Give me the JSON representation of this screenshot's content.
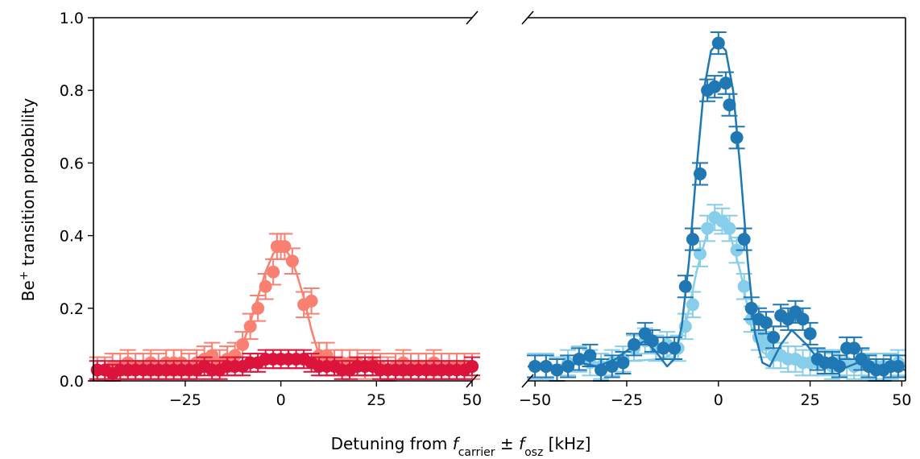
{
  "chart_data": {
    "type": "scatter",
    "ylabel_main": "Be",
    "ylabel_sup": "+",
    "ylabel_rest": " transition probability",
    "xlabel_pre": "Detuning from ",
    "xlabel_f1": "f",
    "xlabel_sub1": "carrier",
    "xlabel_pm": " ± ",
    "xlabel_f2": "f",
    "xlabel_sub2": "osz",
    "xlabel_post": " [kHz]",
    "ylim": [
      0,
      1.0
    ],
    "yticks": [
      "0.0",
      "0.2",
      "0.4",
      "0.6",
      "0.8",
      "1.0"
    ],
    "grid": false,
    "colors": {
      "salmon": "#fa8072",
      "crimson": "#dc143c",
      "blue": "#1f77b4",
      "lightblue": "#87ceeb"
    },
    "panels": [
      {
        "xlim": [
          -49,
          50
        ],
        "xticks": [
          "−25",
          "0",
          "25",
          "50"
        ],
        "xtick_values": [
          -25,
          0,
          25,
          50
        ],
        "series": [
          {
            "color": "#fa8072",
            "x": [
              -48,
              -46,
              -44,
              -42,
              -40,
              -38,
              -36,
              -34,
              -32,
              -30,
              -28,
              -26,
              -24,
              -22,
              -20,
              -18,
              -16,
              -14,
              -12,
              -10,
              -8,
              -6,
              -4,
              -2,
              -1,
              0,
              1,
              3,
              6,
              8,
              10,
              12,
              14,
              16,
              18,
              20,
              22,
              24,
              26,
              28,
              30,
              32,
              34,
              36,
              38,
              40,
              42,
              44,
              46,
              48,
              50
            ],
            "y": [
              0.03,
              0.03,
              0.04,
              0.04,
              0.05,
              0.04,
              0.04,
              0.05,
              0.04,
              0.05,
              0.05,
              0.05,
              0.04,
              0.05,
              0.06,
              0.07,
              0.05,
              0.06,
              0.07,
              0.1,
              0.15,
              0.2,
              0.26,
              0.3,
              0.37,
              0.37,
              0.37,
              0.33,
              0.21,
              0.22,
              0.07,
              0.07,
              0.05,
              0.05,
              0.05,
              0.05,
              0.04,
              0.05,
              0.04,
              0.03,
              0.04,
              0.05,
              0.04,
              0.04,
              0.04,
              0.05,
              0.04,
              0.04,
              0.04,
              0.04,
              0.04
            ],
            "err": 0.035,
            "fit_x": [
              -49,
              -15,
              -10,
              -8,
              -6,
              -4,
              -2,
              0,
              2,
              4,
              6,
              8,
              10,
              12,
              50
            ],
            "fit_y": [
              0.04,
              0.05,
              0.1,
              0.16,
              0.23,
              0.3,
              0.35,
              0.37,
              0.35,
              0.3,
              0.23,
              0.14,
              0.07,
              0.05,
              0.04
            ]
          },
          {
            "color": "#dc143c",
            "x": [
              -48,
              -46,
              -44,
              -42,
              -40,
              -38,
              -36,
              -34,
              -32,
              -30,
              -28,
              -26,
              -24,
              -22,
              -20,
              -18,
              -16,
              -14,
              -12,
              -10,
              -8,
              -6,
              -4,
              -2,
              0,
              2,
              4,
              6,
              8,
              10,
              12,
              14,
              16,
              18,
              20,
              22,
              24,
              26,
              28,
              30,
              32,
              34,
              36,
              38,
              40,
              42,
              44,
              46,
              48,
              50
            ],
            "y": [
              0.03,
              0.03,
              0.02,
              0.03,
              0.03,
              0.03,
              0.03,
              0.03,
              0.03,
              0.03,
              0.03,
              0.03,
              0.03,
              0.03,
              0.04,
              0.03,
              0.03,
              0.04,
              0.04,
              0.04,
              0.05,
              0.05,
              0.06,
              0.06,
              0.06,
              0.06,
              0.06,
              0.06,
              0.05,
              0.04,
              0.04,
              0.04,
              0.03,
              0.03,
              0.04,
              0.04,
              0.04,
              0.03,
              0.03,
              0.03,
              0.03,
              0.03,
              0.03,
              0.03,
              0.03,
              0.03,
              0.03,
              0.03,
              0.03,
              0.04
            ],
            "err": 0.025
          }
        ]
      },
      {
        "xlim": [
          -52,
          51
        ],
        "xticks": [
          "−50",
          "−25",
          "0",
          "25",
          "50"
        ],
        "xtick_values": [
          -50,
          -25,
          0,
          25,
          50
        ],
        "series": [
          {
            "color": "#87ceeb",
            "x": [
              -50,
              -47,
              -44,
              -41,
              -38,
              -35,
              -32,
              -29,
              -26,
              -23,
              -20,
              -17,
              -14,
              -11,
              -9,
              -7,
              -5,
              -3,
              -1,
              1,
              3,
              5,
              7,
              9,
              11,
              13,
              15,
              17,
              19,
              21,
              23,
              25,
              27,
              29,
              31,
              33,
              35,
              37,
              39,
              41,
              43,
              45,
              47,
              49
            ],
            "y": [
              0.04,
              0.04,
              0.03,
              0.05,
              0.06,
              0.05,
              0.04,
              0.05,
              0.06,
              0.09,
              0.11,
              0.09,
              0.1,
              0.09,
              0.15,
              0.21,
              0.35,
              0.42,
              0.45,
              0.44,
              0.42,
              0.36,
              0.26,
              0.17,
              0.12,
              0.1,
              0.07,
              0.07,
              0.06,
              0.06,
              0.05,
              0.05,
              0.05,
              0.05,
              0.04,
              0.05,
              0.05,
              0.04,
              0.05,
              0.04,
              0.04,
              0.04,
              0.04,
              0.05
            ],
            "err": 0.035,
            "fit_x": [
              -52,
              -15,
              -12,
              -9,
              -6,
              -3,
              0,
              3,
              6,
              9,
              12,
              15,
              51
            ],
            "fit_y": [
              0.04,
              0.06,
              0.08,
              0.15,
              0.3,
              0.41,
              0.45,
              0.41,
              0.3,
              0.15,
              0.08,
              0.06,
              0.04
            ]
          },
          {
            "color": "#1f77b4",
            "x": [
              -50,
              -47,
              -44,
              -41,
              -38,
              -35,
              -32,
              -29,
              -26,
              -23,
              -20,
              -18,
              -15,
              -12,
              -9,
              -7,
              -5,
              -3,
              -1,
              0,
              2,
              3,
              5,
              7,
              9,
              11,
              13,
              15,
              17,
              19,
              21,
              23,
              25,
              27,
              29,
              31,
              33,
              35,
              37,
              39,
              41,
              43,
              45,
              47,
              49
            ],
            "y": [
              0.04,
              0.04,
              0.03,
              0.04,
              0.06,
              0.07,
              0.03,
              0.04,
              0.05,
              0.1,
              0.13,
              0.11,
              0.09,
              0.09,
              0.26,
              0.39,
              0.57,
              0.8,
              0.81,
              0.93,
              0.82,
              0.76,
              0.67,
              0.39,
              0.2,
              0.17,
              0.16,
              0.12,
              0.18,
              0.17,
              0.19,
              0.17,
              0.13,
              0.06,
              0.05,
              0.05,
              0.04,
              0.09,
              0.09,
              0.06,
              0.04,
              0.03,
              0.03,
              0.04,
              0.04
            ],
            "err": 0.03,
            "fit_x": [
              -52,
              -44,
              -38,
              -33,
              -28,
              -24,
              -20,
              -17,
              -14,
              -12,
              -10,
              -8,
              -6,
              -4,
              -2,
              0,
              2,
              4,
              6,
              8,
              10,
              12,
              14,
              17,
              20,
              24,
              28,
              33,
              38,
              44,
              51
            ],
            "fit_y": [
              0.04,
              0.03,
              0.05,
              0.04,
              0.06,
              0.09,
              0.11,
              0.08,
              0.04,
              0.06,
              0.15,
              0.33,
              0.58,
              0.8,
              0.91,
              0.93,
              0.91,
              0.8,
              0.58,
              0.33,
              0.13,
              0.05,
              0.04,
              0.1,
              0.14,
              0.1,
              0.05,
              0.03,
              0.05,
              0.04,
              0.03
            ]
          }
        ]
      }
    ]
  }
}
